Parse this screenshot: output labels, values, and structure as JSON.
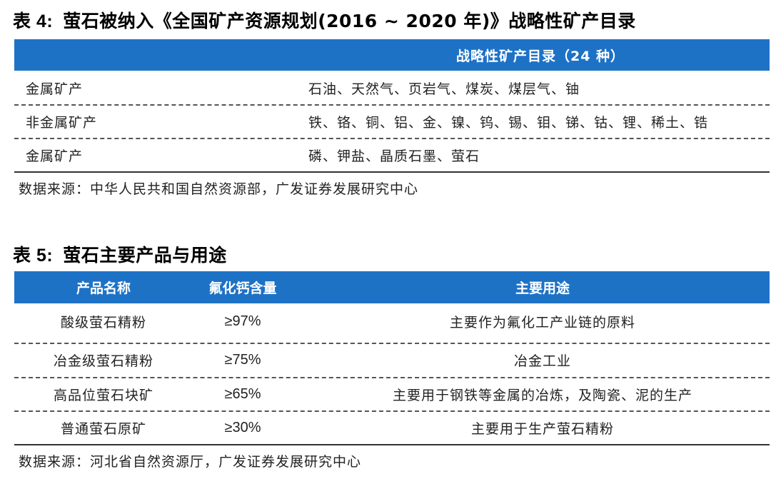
{
  "table4": {
    "caption_num": "表 4:",
    "caption_text": "萤石被纳入《全国矿产资源规划(2016 ~ 2020 年)》战略性矿产目录",
    "header": "战略性矿产目录（24 种）",
    "rows": [
      {
        "category": "金属矿产",
        "minerals": "石油、天然气、页岩气、煤炭、煤层气、铀"
      },
      {
        "category": "非金属矿产",
        "minerals": "铁、铬、铜、铝、金、镍、钨、锡、钼、锑、钴、锂、稀土、锆"
      },
      {
        "category": "金属矿产",
        "minerals": "磷、钾盐、晶质石墨、萤石"
      }
    ],
    "source": "数据来源：中华人民共和国自然资源部，广发证券发展研究中心"
  },
  "table5": {
    "caption_num": "表 5:",
    "caption_text": "萤石主要产品与用途",
    "headers": [
      "产品名称",
      "氟化钙含量",
      "主要用途"
    ],
    "rows": [
      {
        "name": "酸级萤石精粉",
        "content": "≥97%",
        "use": "主要作为氟化工产业链的原料"
      },
      {
        "name": "冶金级萤石精粉",
        "content": "≥75%",
        "use": "冶金工业"
      },
      {
        "name": "高品位萤石块矿",
        "content": "≥65%",
        "use": "主要用于钢铁等金属的冶炼，及陶瓷、泥的生产"
      },
      {
        "name": "普通萤石原矿",
        "content": "≥30%",
        "use": "主要用于生产萤石精粉"
      }
    ],
    "source": "数据来源：河北省自然资源厅，广发证券发展研究中心"
  }
}
